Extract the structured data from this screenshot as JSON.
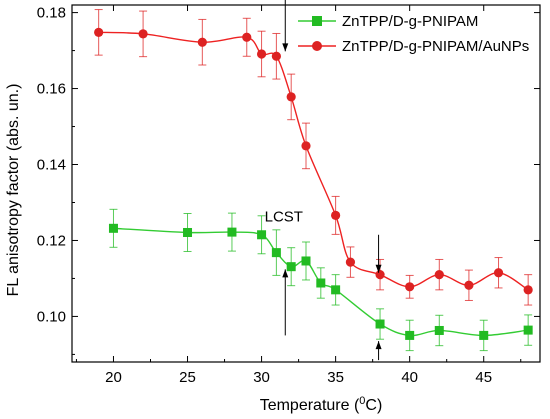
{
  "chart_data": {
    "type": "scatter",
    "title": "",
    "xlabel": "Temperature (",
    "xlabel_sup": "0",
    "xlabel_tail": "C)",
    "ylabel": "FL anisotropy factor (abs. un.)",
    "xlim": [
      17.2,
      48.8
    ],
    "ylim": [
      0.088,
      0.182
    ],
    "xticks": [
      "20",
      "25",
      "30",
      "35",
      "40",
      "45"
    ],
    "xtick_values": [
      20,
      25,
      30,
      35,
      40,
      45
    ],
    "yticks": [
      "0.10",
      "0.12",
      "0.14",
      "0.16",
      "0.18"
    ],
    "ytick_values": [
      0.1,
      0.12,
      0.14,
      0.16,
      0.18
    ],
    "legend_position": "top-right",
    "annotation": "LCST",
    "series": [
      {
        "name": "ZnTPP/D-g-PNIPAM",
        "marker": "square",
        "color": "#22bb22",
        "line_color": "#33cc33",
        "x": [
          20,
          25,
          28,
          30,
          31,
          32,
          33,
          34,
          35,
          38,
          40,
          42,
          45,
          48
        ],
        "y": [
          0.1232,
          0.1221,
          0.1222,
          0.1215,
          0.1168,
          0.1131,
          0.1146,
          0.1088,
          0.107,
          0.098,
          0.095,
          0.0963,
          0.095,
          0.0964
        ],
        "err": [
          0.005,
          0.005,
          0.005,
          0.005,
          0.006,
          0.005,
          0.005,
          0.004,
          0.004,
          0.004,
          0.004,
          0.004,
          0.004,
          0.004
        ]
      },
      {
        "name": "ZnTPP/D-g-PNIPAM/AuNPs",
        "marker": "circle",
        "color": "#dd2222",
        "line_color": "#ee2222",
        "x": [
          19,
          22,
          26,
          29,
          30,
          31,
          32,
          33,
          35,
          36,
          38,
          40,
          42,
          44,
          46,
          48
        ],
        "y": [
          0.1748,
          0.1744,
          0.1722,
          0.1735,
          0.1691,
          0.1685,
          0.1578,
          0.1449,
          0.1266,
          0.1143,
          0.111,
          0.1078,
          0.111,
          0.1082,
          0.1115,
          0.107
        ],
        "err": [
          0.006,
          0.006,
          0.006,
          0.005,
          0.006,
          0.006,
          0.006,
          0.006,
          0.005,
          0.004,
          0.004,
          0.003,
          0.004,
          0.004,
          0.004,
          0.004
        ]
      }
    ],
    "arrows": [
      {
        "x": 31.6,
        "from_y": 0.1845,
        "to_y": 0.1698,
        "dir": "down"
      },
      {
        "x": 37.9,
        "from_y": 0.1215,
        "to_y": 0.1115,
        "dir": "down"
      },
      {
        "x": 31.6,
        "from_y": 0.095,
        "to_y": 0.1124,
        "dir": "up"
      },
      {
        "x": 37.9,
        "from_y": 0.0885,
        "to_y": 0.0935,
        "dir": "up"
      }
    ],
    "annotation_pos": {
      "x": 31.5,
      "y": 0.125
    }
  }
}
